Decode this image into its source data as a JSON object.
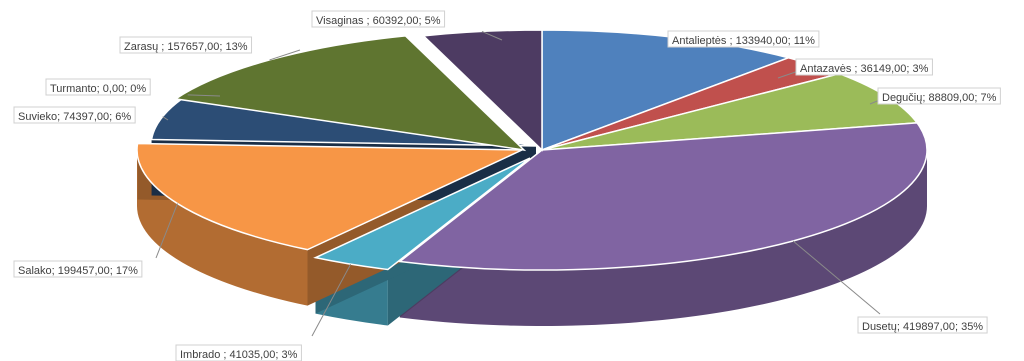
{
  "chart_data": {
    "type": "pie",
    "style": "3d-exploded",
    "title": "",
    "slices": [
      {
        "name": "Antalieptės",
        "value": 133940.0,
        "percent": 11,
        "label": "Antalieptės ; 133940,00; 11%",
        "color": "#4f81bd"
      },
      {
        "name": "Antazavės",
        "value": 36149.0,
        "percent": 3,
        "label": "Antazavės ; 36149,00; 3%",
        "color": "#c0504d"
      },
      {
        "name": "Degučių",
        "value": 88809.0,
        "percent": 7,
        "label": "Degučių; 88809,00; 7%",
        "color": "#9bbb59"
      },
      {
        "name": "Dusetų",
        "value": 419897.0,
        "percent": 35,
        "label": "Dusetų; 419897,00; 35%",
        "color": "#8064a2"
      },
      {
        "name": "Imbrado",
        "value": 41035.0,
        "percent": 3,
        "label": "Imbrado ; 41035,00; 3%",
        "color": "#4bacc6"
      },
      {
        "name": "Salako",
        "value": 199457.0,
        "percent": 17,
        "label": "Salako; 199457,00; 17%",
        "color": "#f79646"
      },
      {
        "name": "Suvieko",
        "value": 74397.0,
        "percent": 6,
        "label": "Suvieko; 74397,00; 6%",
        "color": "#2c4d75"
      },
      {
        "name": "Turmanto",
        "value": 0.0,
        "percent": 0,
        "label": "Turmanto; 0,00; 0%",
        "color": "#772c2a"
      },
      {
        "name": "Zarasų",
        "value": 157657.0,
        "percent": 13,
        "label": "Zarasų ; 157657,00; 13%",
        "color": "#5f7530"
      },
      {
        "name": "Visaginas",
        "value": 60392.0,
        "percent": 5,
        "label": "Visaginas ; 60392,00; 5%",
        "color": "#4d3b62"
      }
    ]
  }
}
